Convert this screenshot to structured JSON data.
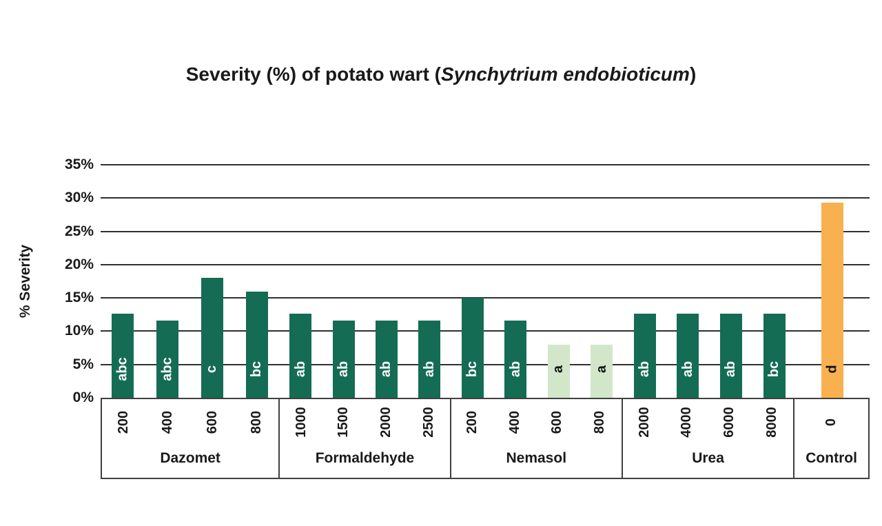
{
  "title": {
    "prefix": "Severity (%) of potato wart (",
    "species": "Synchytrium endobioticum",
    "suffix": ")"
  },
  "y_axis": {
    "label": "% Severity",
    "ticks": [
      "35%",
      "30%",
      "25%",
      "20%",
      "15%",
      "10%",
      "5%",
      "0%"
    ]
  },
  "chart_data": {
    "type": "bar",
    "title": "Severity (%) of potato wart (Synchytrium endobioticum)",
    "xlabel": "",
    "ylabel": "% Severity",
    "ylim": [
      0,
      35
    ],
    "grid": true,
    "legend_position": "none",
    "colors": {
      "dark_green": "#146C54",
      "light_green": "#D2E7CA",
      "orange": "#F9B04E"
    },
    "letter_colors": {
      "dark_green": "#FFFFFF",
      "light_green": "#111111",
      "orange": "#111111"
    },
    "groups": [
      {
        "label": "Dazomet",
        "bars": [
          {
            "dose": "200",
            "value": 12.6,
            "letter": "abc",
            "color": "dark_green"
          },
          {
            "dose": "400",
            "value": 11.6,
            "letter": "abc",
            "color": "dark_green"
          },
          {
            "dose": "600",
            "value": 18.0,
            "letter": "c",
            "color": "dark_green"
          },
          {
            "dose": "800",
            "value": 16.0,
            "letter": "bc",
            "color": "dark_green"
          }
        ]
      },
      {
        "label": "Formaldehyde",
        "bars": [
          {
            "dose": "1000",
            "value": 12.6,
            "letter": "ab",
            "color": "dark_green"
          },
          {
            "dose": "1500",
            "value": 11.6,
            "letter": "ab",
            "color": "dark_green"
          },
          {
            "dose": "2000",
            "value": 11.6,
            "letter": "ab",
            "color": "dark_green"
          },
          {
            "dose": "2500",
            "value": 11.6,
            "letter": "ab",
            "color": "dark_green"
          }
        ]
      },
      {
        "label": "Nemasol",
        "bars": [
          {
            "dose": "200",
            "value": 15.0,
            "letter": "bc",
            "color": "dark_green"
          },
          {
            "dose": "400",
            "value": 11.6,
            "letter": "ab",
            "color": "dark_green"
          },
          {
            "dose": "600",
            "value": 8.0,
            "letter": "a",
            "color": "light_green"
          },
          {
            "dose": "800",
            "value": 8.0,
            "letter": "a",
            "color": "light_green"
          }
        ]
      },
      {
        "label": "Urea",
        "bars": [
          {
            "dose": "2000",
            "value": 12.6,
            "letter": "ab",
            "color": "dark_green"
          },
          {
            "dose": "4000",
            "value": 12.6,
            "letter": "ab",
            "color": "dark_green"
          },
          {
            "dose": "6000",
            "value": 12.6,
            "letter": "ab",
            "color": "dark_green"
          },
          {
            "dose": "8000",
            "value": 12.6,
            "letter": "bc",
            "color": "dark_green"
          }
        ]
      },
      {
        "label": "Control",
        "bars": [
          {
            "dose": "0",
            "value": 29.3,
            "letter": "d",
            "color": "orange"
          }
        ]
      }
    ]
  }
}
